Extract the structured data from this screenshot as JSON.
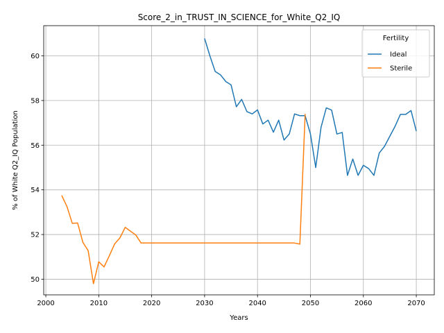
{
  "chart_data": {
    "type": "line",
    "title": "Score_2_in_TRUST_IN_SCIENCE_for_White_Q2_IQ",
    "xlabel": "Years",
    "ylabel": "% of White Q2_IQ Population",
    "xlim": [
      1999.6,
      2073.4
    ],
    "ylim": [
      49.3,
      61.35
    ],
    "xticks": [
      2000,
      2010,
      2020,
      2030,
      2040,
      2050,
      2060,
      2070
    ],
    "yticks": [
      50,
      52,
      54,
      56,
      58,
      60
    ],
    "grid": true,
    "legend": {
      "title": "Fertility",
      "placement": "top-right"
    },
    "series": [
      {
        "name": "Ideal",
        "color": "#1f77b4",
        "x": [
          2030,
          2031,
          2032,
          2033,
          2034,
          2035,
          2036,
          2037,
          2038,
          2039,
          2040,
          2041,
          2042,
          2043,
          2044,
          2045,
          2046,
          2047,
          2048,
          2049,
          2050,
          2051,
          2052,
          2053,
          2054,
          2055,
          2056,
          2057,
          2058,
          2059,
          2060,
          2061,
          2062,
          2063,
          2064,
          2065,
          2066,
          2067,
          2068,
          2069,
          2070
        ],
        "y": [
          60.78,
          60.0,
          59.3,
          59.15,
          58.85,
          58.7,
          57.72,
          58.05,
          57.5,
          57.4,
          57.58,
          56.95,
          57.12,
          56.58,
          57.12,
          56.23,
          56.5,
          57.4,
          57.32,
          57.32,
          56.5,
          55.0,
          56.8,
          57.67,
          57.57,
          56.5,
          56.57,
          54.65,
          55.38,
          54.65,
          55.1,
          54.95,
          54.65,
          55.65,
          55.95,
          56.4,
          56.85,
          57.38,
          57.38,
          57.55,
          56.63
        ]
      },
      {
        "name": "Sterile",
        "color": "#ff7f0e",
        "x": [
          2003,
          2004,
          2005,
          2006,
          2007,
          2008,
          2009,
          2010,
          2011,
          2012,
          2013,
          2014,
          2015,
          2016,
          2017,
          2018,
          2019,
          2020,
          2021,
          2022,
          2023,
          2024,
          2025,
          2026,
          2027,
          2028,
          2029,
          2030,
          2031,
          2032,
          2033,
          2034,
          2035,
          2036,
          2037,
          2038,
          2039,
          2040,
          2041,
          2042,
          2043,
          2044,
          2045,
          2046,
          2047,
          2048,
          2049
        ],
        "y": [
          53.75,
          53.25,
          52.5,
          52.52,
          51.65,
          51.28,
          49.8,
          50.78,
          50.55,
          51.05,
          51.58,
          51.85,
          52.32,
          52.15,
          51.98,
          51.62,
          51.62,
          51.62,
          51.62,
          51.62,
          51.62,
          51.62,
          51.62,
          51.62,
          51.62,
          51.62,
          51.62,
          51.62,
          51.62,
          51.62,
          51.62,
          51.62,
          51.62,
          51.62,
          51.62,
          51.62,
          51.62,
          51.62,
          51.62,
          51.62,
          51.62,
          51.62,
          51.62,
          51.62,
          51.62,
          51.57,
          57.4
        ]
      }
    ]
  }
}
